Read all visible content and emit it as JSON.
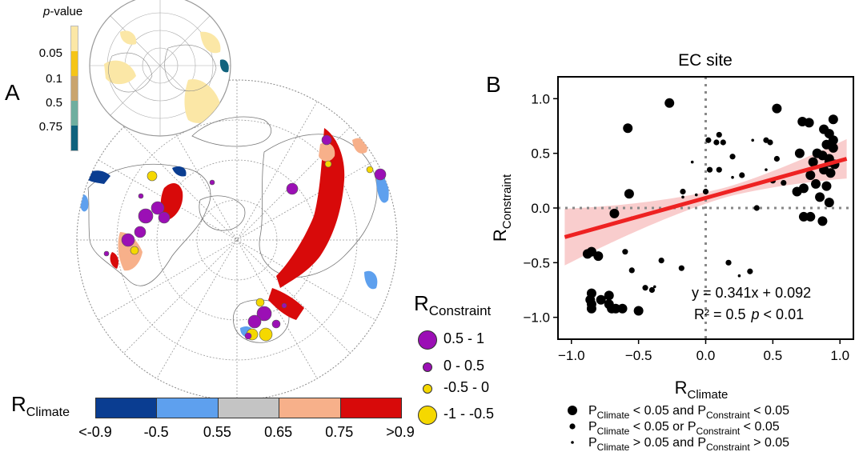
{
  "panel_a": {
    "label": "A",
    "pvalue_title_italic": "p",
    "pvalue_title_rest": "-value",
    "pvalue_ticks": [
      "0.05",
      "0.1",
      "0.5",
      "0.75"
    ],
    "pvalue_colors": [
      "#fbe7a6",
      "#f5c518",
      "#c9a46e",
      "#6fae9f",
      "#10627d"
    ],
    "size_legend_title_main": "R",
    "size_legend_title_sub": "Constraint",
    "size_legend": [
      {
        "label": "0.5 - 1",
        "color": "#9b0fb5"
      },
      {
        "label": "0 - 0.5",
        "color": "#9b0fb5"
      },
      {
        "label": "-0.5 - 0",
        "color": "#f5d800"
      },
      {
        "label": "-1 - -0.5",
        "color": "#f5d800"
      }
    ],
    "colorbar_title_main": "R",
    "colorbar_title_sub": "Climate",
    "colorbar_colors": [
      "#0a3d91",
      "#5ea0ee",
      "#c4c4c4",
      "#f7b08a",
      "#d80a0a"
    ],
    "colorbar_ticks": [
      "<-0.9",
      "-0.5",
      "0.55",
      "0.65",
      "0.75",
      ">0.9"
    ]
  },
  "panel_b": {
    "label": "B",
    "equation_text": "y = 0.341x + 0.092",
    "r2_text": "R² = 0.5",
    "p_text_italic": "p",
    "p_text_rest": " < 0.01",
    "legend": [
      {
        "p1": "P",
        "s1": "Climate",
        "mid": " < 0.05 and P",
        "s2": "Constraint",
        "end": " < 0.05"
      },
      {
        "p1": "P",
        "s1": "Climate",
        "mid": " < 0.05   or  P",
        "s2": "Constraint",
        "end": " < 0.05"
      },
      {
        "p1": "P",
        "s1": "Climate",
        "mid": " > 0.05 and P",
        "s2": "Constraint",
        "end": " > 0.05"
      }
    ]
  },
  "chart_data": {
    "type": "scatter",
    "title": "EC site",
    "xlabel_main": "R",
    "xlabel_sub": "Climate",
    "ylabel_main": "R",
    "ylabel_sub": "Constraint",
    "xlim": [
      -1.1,
      1.1
    ],
    "ylim": [
      -1.2,
      1.2
    ],
    "xticks": [
      "−1.0",
      "−0.5",
      "0.0",
      "0.5",
      "1.0"
    ],
    "xtick_values": [
      -1.0,
      -0.5,
      0.0,
      0.5,
      1.0
    ],
    "yticks": [
      "1.0",
      "0.5",
      "0.0",
      "−0.5",
      "−1.0"
    ],
    "ytick_values": [
      1.0,
      0.5,
      0.0,
      -0.5,
      -1.0
    ],
    "regression": {
      "slope": 0.341,
      "intercept": 0.092,
      "x_range": [
        -1.05,
        1.05
      ],
      "color": "#ee2222",
      "band_color": "#f7c0c0"
    },
    "point_color": "#000000",
    "points": [
      {
        "x": -0.88,
        "y": -0.42,
        "g": 1
      },
      {
        "x": -0.85,
        "y": -0.4,
        "g": 1
      },
      {
        "x": -0.8,
        "y": -0.44,
        "g": 1
      },
      {
        "x": -0.85,
        "y": -0.78,
        "g": 1
      },
      {
        "x": -0.86,
        "y": -0.84,
        "g": 1
      },
      {
        "x": -0.85,
        "y": -0.88,
        "g": 1
      },
      {
        "x": -0.85,
        "y": -0.92,
        "g": 1
      },
      {
        "x": -0.78,
        "y": -0.84,
        "g": 1
      },
      {
        "x": -0.72,
        "y": -0.8,
        "g": 1
      },
      {
        "x": -0.72,
        "y": -0.88,
        "g": 1
      },
      {
        "x": -0.7,
        "y": -0.92,
        "g": 1
      },
      {
        "x": -0.67,
        "y": -0.92,
        "g": 1
      },
      {
        "x": -0.62,
        "y": -0.92,
        "g": 1
      },
      {
        "x": -0.68,
        "y": -0.05,
        "g": 1
      },
      {
        "x": -0.5,
        "y": -0.94,
        "g": 1
      },
      {
        "x": -0.58,
        "y": 0.73,
        "g": 1
      },
      {
        "x": -0.27,
        "y": 0.96,
        "g": 1
      },
      {
        "x": -0.57,
        "y": 0.13,
        "g": 1
      },
      {
        "x": 0.53,
        "y": 0.91,
        "g": 1
      },
      {
        "x": 0.72,
        "y": 0.79,
        "g": 1
      },
      {
        "x": 0.77,
        "y": 0.78,
        "g": 1
      },
      {
        "x": 0.95,
        "y": 0.81,
        "g": 1
      },
      {
        "x": 0.88,
        "y": 0.72,
        "g": 1
      },
      {
        "x": 0.92,
        "y": 0.68,
        "g": 1
      },
      {
        "x": 0.9,
        "y": 0.58,
        "g": 1
      },
      {
        "x": 0.95,
        "y": 0.55,
        "g": 1
      },
      {
        "x": 0.83,
        "y": 0.5,
        "g": 1
      },
      {
        "x": 0.87,
        "y": 0.48,
        "g": 1
      },
      {
        "x": 0.92,
        "y": 0.45,
        "g": 1
      },
      {
        "x": 0.96,
        "y": 0.4,
        "g": 1
      },
      {
        "x": 0.8,
        "y": 0.42,
        "g": 1
      },
      {
        "x": 0.7,
        "y": 0.5,
        "g": 1
      },
      {
        "x": 0.88,
        "y": 0.35,
        "g": 1
      },
      {
        "x": 0.93,
        "y": 0.32,
        "g": 1
      },
      {
        "x": 0.78,
        "y": 0.3,
        "g": 1
      },
      {
        "x": 0.82,
        "y": 0.22,
        "g": 1
      },
      {
        "x": 0.9,
        "y": 0.2,
        "g": 1
      },
      {
        "x": 0.73,
        "y": 0.18,
        "g": 1
      },
      {
        "x": 0.68,
        "y": 0.15,
        "g": 1
      },
      {
        "x": 0.85,
        "y": 0.1,
        "g": 1
      },
      {
        "x": 0.92,
        "y": 0.05,
        "g": 1
      },
      {
        "x": 0.73,
        "y": -0.08,
        "g": 1
      },
      {
        "x": 0.78,
        "y": -0.08,
        "g": 1
      },
      {
        "x": 0.87,
        "y": -0.12,
        "g": 1
      },
      {
        "x": 0.95,
        "y": 0.62,
        "g": 1
      },
      {
        "x": 0.92,
        "y": 0.42,
        "g": 1
      },
      {
        "x": -0.6,
        "y": -0.4,
        "g": 2
      },
      {
        "x": -0.55,
        "y": -0.57,
        "g": 2
      },
      {
        "x": -0.4,
        "y": -0.75,
        "g": 2
      },
      {
        "x": -0.45,
        "y": -0.73,
        "g": 2
      },
      {
        "x": -0.33,
        "y": -0.48,
        "g": 2
      },
      {
        "x": -0.18,
        "y": -0.55,
        "g": 2
      },
      {
        "x": -0.17,
        "y": 0.15,
        "g": 2
      },
      {
        "x": 0.0,
        "y": 0.15,
        "g": 2
      },
      {
        "x": 0.03,
        "y": 0.35,
        "g": 2
      },
      {
        "x": 0.1,
        "y": 0.67,
        "g": 2
      },
      {
        "x": 0.13,
        "y": 0.6,
        "g": 2
      },
      {
        "x": 0.08,
        "y": 0.6,
        "g": 2
      },
      {
        "x": 0.02,
        "y": 0.62,
        "g": 2
      },
      {
        "x": 0.2,
        "y": 0.47,
        "g": 2
      },
      {
        "x": 0.27,
        "y": 0.3,
        "g": 2
      },
      {
        "x": 0.33,
        "y": -0.58,
        "g": 2
      },
      {
        "x": 0.38,
        "y": 0.0,
        "g": 2
      },
      {
        "x": 0.48,
        "y": 0.6,
        "g": 2
      },
      {
        "x": 0.5,
        "y": 0.25,
        "g": 2
      },
      {
        "x": 0.53,
        "y": 0.45,
        "g": 2
      },
      {
        "x": 0.58,
        "y": 0.23,
        "g": 2
      },
      {
        "x": 0.17,
        "y": -0.5,
        "g": 2
      },
      {
        "x": 0.45,
        "y": 0.62,
        "g": 2
      },
      {
        "x": 0.1,
        "y": 0.35,
        "g": 2
      },
      {
        "x": -0.55,
        "y": -0.09,
        "g": 3
      },
      {
        "x": -0.38,
        "y": -0.72,
        "g": 3
      },
      {
        "x": -0.17,
        "y": 0.1,
        "g": 3
      },
      {
        "x": -0.1,
        "y": 0.42,
        "g": 3
      },
      {
        "x": -0.07,
        "y": 0.12,
        "g": 3
      },
      {
        "x": 0.2,
        "y": 0.28,
        "g": 3
      },
      {
        "x": 0.25,
        "y": -0.62,
        "g": 3
      },
      {
        "x": 0.35,
        "y": 0.62,
        "g": 3
      },
      {
        "x": 0.45,
        "y": 0.35,
        "g": 3
      }
    ]
  }
}
